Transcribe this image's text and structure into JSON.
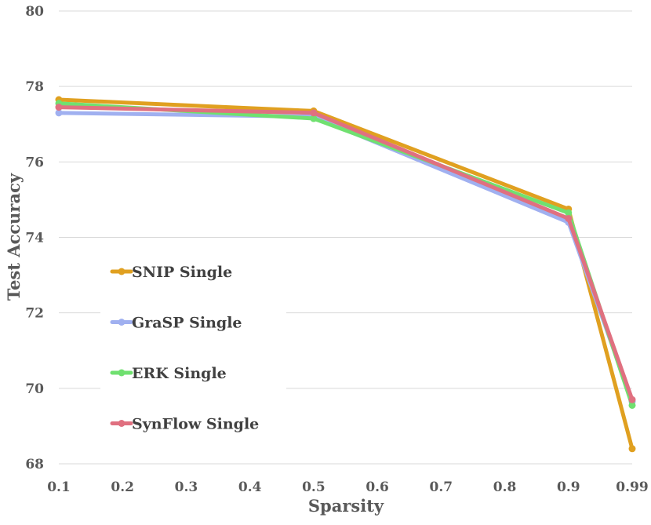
{
  "chart_data": {
    "type": "line",
    "xlabel": "Sparsity",
    "ylabel": "Test Accuracy",
    "x_ticks": [
      "0.1",
      "0.2",
      "0.3",
      "0.4",
      "0.5",
      "0.6",
      "0.7",
      "0.8",
      "0.9",
      "0.99"
    ],
    "ylim": [
      68,
      80
    ],
    "y_ticks": [
      "68",
      "70",
      "72",
      "74",
      "76",
      "78",
      "80"
    ],
    "grid": true,
    "legend_position": "left",
    "x": [
      "0.1",
      "0.5",
      "0.9",
      "0.99"
    ],
    "series": [
      {
        "name": "SNIP Single",
        "color": "#E0A020",
        "values": [
          77.65,
          77.35,
          74.75,
          68.4
        ]
      },
      {
        "name": "GraSP Single",
        "color": "#A0B0F0",
        "values": [
          77.3,
          77.2,
          74.4,
          69.65
        ]
      },
      {
        "name": "ERK Single",
        "color": "#70E070",
        "values": [
          77.55,
          77.15,
          74.65,
          69.55
        ]
      },
      {
        "name": "SynFlow Single",
        "color": "#E07080",
        "values": [
          77.45,
          77.3,
          74.5,
          69.7
        ]
      }
    ]
  }
}
